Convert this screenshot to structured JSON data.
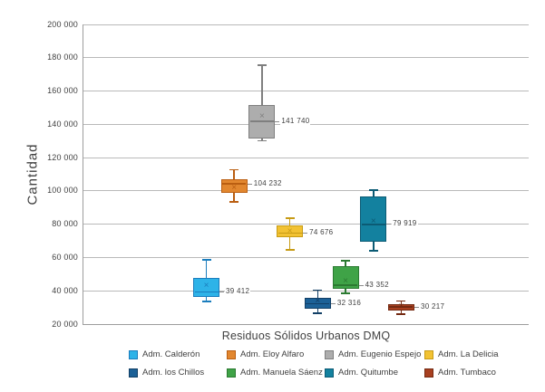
{
  "chart_data": {
    "type": "box",
    "xlabel": "Residuos Sólidos Urbanos DMQ",
    "ylabel": "Cantidad",
    "ylim": [
      20000,
      200000
    ],
    "grid": "horizontal",
    "legend_position": "bottom",
    "y_ticks": [
      {
        "value": 20000,
        "label": "20 000"
      },
      {
        "value": 40000,
        "label": "40 000"
      },
      {
        "value": 60000,
        "label": "60 000"
      },
      {
        "value": 80000,
        "label": "80 000"
      },
      {
        "value": 100000,
        "label": "100 000"
      },
      {
        "value": 120000,
        "label": "120 000"
      },
      {
        "value": 140000,
        "label": "140 000"
      },
      {
        "value": 160000,
        "label": "160 000"
      },
      {
        "value": 180000,
        "label": "180 000"
      },
      {
        "value": 200000,
        "label": "200 000"
      }
    ],
    "series": [
      {
        "name": "Adm. Calderón",
        "low": 33500,
        "q1": 36500,
        "median": 39412,
        "mean": 43000,
        "q3": 47500,
        "high": 58500,
        "value_label": "39 412",
        "fill": "#2eb3e8",
        "stroke": "#1b7dbd"
      },
      {
        "name": "Adm. Eloy Alfaro",
        "low": 93300,
        "q1": 98600,
        "median": 104232,
        "mean": 101500,
        "q3": 106800,
        "high": 112700,
        "value_label": "104 232",
        "fill": "#e2872f",
        "stroke": "#ba5e11"
      },
      {
        "name": "Adm. Eugenio Espejo",
        "low": 130000,
        "q1": 131500,
        "median": 141740,
        "mean": 144500,
        "q3": 151500,
        "high": 175500,
        "value_label": "141 740",
        "fill": "#adadad",
        "stroke": "#7f7f7f"
      },
      {
        "name": "Adm. La Delicia",
        "low": 64500,
        "q1": 72000,
        "median": 74676,
        "mean": 75500,
        "q3": 79500,
        "high": 83500,
        "value_label": "74 676",
        "fill": "#f2c233",
        "stroke": "#c79b15"
      },
      {
        "name": "Adm. los Chillos",
        "low": 26500,
        "q1": 29500,
        "median": 32316,
        "mean": 33500,
        "q3": 35500,
        "high": 40500,
        "value_label": "32 316",
        "fill": "#1c6197",
        "stroke": "#123f66"
      },
      {
        "name": "Adm. Manuela Sáenz",
        "low": 38500,
        "q1": 41000,
        "median": 43352,
        "mean": 45800,
        "q3": 54800,
        "high": 58000,
        "value_label": "43 352",
        "fill": "#3fa347",
        "stroke": "#2b7a31"
      },
      {
        "name": "Adm. Quitumbe",
        "low": 64000,
        "q1": 69500,
        "median": 79919,
        "mean": 81500,
        "q3": 96500,
        "high": 100500,
        "value_label": "79 919",
        "fill": "#13819f",
        "stroke": "#0c5b74"
      },
      {
        "name": "Adm. Tumbaco",
        "low": 26000,
        "q1": 28300,
        "median": 30217,
        "mean": 30400,
        "q3": 32000,
        "high": 34000,
        "value_label": "30 217",
        "fill": "#a84020",
        "stroke": "#742a12"
      }
    ]
  }
}
